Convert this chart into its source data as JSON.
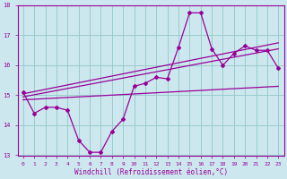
{
  "xlabel": "Windchill (Refroidissement éolien,°C)",
  "background_color": "#cce8ee",
  "line_color": "#990099",
  "grid_color": "#99cccc",
  "xlim": [
    -0.5,
    23.5
  ],
  "ylim": [
    13,
    18
  ],
  "yticks": [
    13,
    14,
    15,
    16,
    17,
    18
  ],
  "xticks": [
    0,
    1,
    2,
    3,
    4,
    5,
    6,
    7,
    8,
    9,
    10,
    11,
    12,
    13,
    14,
    15,
    16,
    17,
    18,
    19,
    20,
    21,
    22,
    23
  ],
  "main_x": [
    0,
    1,
    2,
    3,
    4,
    5,
    6,
    7,
    8,
    9,
    10,
    11,
    12,
    13,
    14,
    15,
    16,
    17,
    18,
    19,
    20,
    21,
    22,
    23
  ],
  "main_y": [
    15.1,
    14.4,
    14.6,
    14.6,
    14.5,
    13.5,
    13.1,
    13.1,
    13.8,
    14.2,
    15.3,
    15.4,
    15.6,
    15.55,
    16.6,
    17.75,
    17.75,
    16.55,
    16.0,
    16.4,
    16.65,
    16.5,
    16.5,
    15.9
  ],
  "trend1_x": [
    0,
    23
  ],
  "trend1_y": [
    14.85,
    15.3
  ],
  "trend2_x": [
    0,
    23
  ],
  "trend2_y": [
    14.95,
    16.55
  ],
  "trend3_x": [
    0,
    23
  ],
  "trend3_y": [
    15.05,
    16.75
  ],
  "marker": "D",
  "markersize": 2.0,
  "linewidth": 0.9
}
